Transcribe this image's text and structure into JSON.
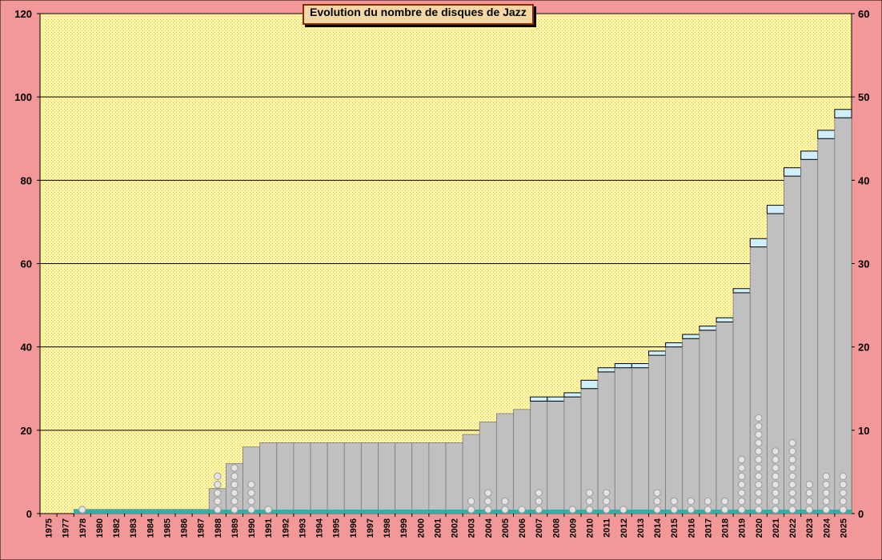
{
  "chart_data": {
    "type": "bar",
    "title": "Evolution du nombre de disques de Jazz",
    "categories": [
      "1975",
      "1977",
      "1978",
      "1980",
      "1982",
      "1983",
      "1984",
      "1985",
      "1986",
      "1987",
      "1988",
      "1989",
      "1990",
      "1991",
      "1992",
      "1993",
      "1994",
      "1995",
      "1996",
      "1997",
      "1998",
      "1999",
      "2000",
      "2001",
      "2002",
      "2003",
      "2004",
      "2005",
      "2006",
      "2007",
      "2008",
      "2009",
      "2010",
      "2011",
      "2012",
      "2013",
      "2014",
      "2015",
      "2016",
      "2017",
      "2018",
      "2019",
      "2020",
      "2021",
      "2022",
      "2023",
      "2024",
      "2025"
    ],
    "series": [
      {
        "values": [
          0,
          0,
          1,
          1,
          1,
          1,
          1,
          1,
          1,
          1,
          6,
          12,
          16,
          17,
          17,
          17,
          17,
          17,
          17,
          17,
          17,
          17,
          17,
          17,
          17,
          19,
          22,
          24,
          25,
          27,
          27,
          28,
          30,
          34,
          35,
          35,
          38,
          40,
          42,
          44,
          46,
          53,
          64,
          72,
          81,
          85,
          90,
          95
        ]
      },
      {
        "values": [
          0,
          0,
          0,
          0,
          0,
          0,
          0,
          0,
          0,
          0,
          0,
          0,
          0,
          0,
          0,
          0,
          0,
          0,
          0,
          0,
          0,
          0,
          0,
          0,
          0,
          0,
          0,
          0,
          0,
          1,
          1,
          1,
          2,
          1,
          1,
          1,
          1,
          1,
          1,
          1,
          1,
          1,
          2,
          2,
          2,
          2,
          2,
          2
        ]
      },
      {
        "values": [
          0,
          0,
          1,
          0,
          0,
          0,
          0,
          0,
          0,
          0,
          5,
          6,
          4,
          1,
          0,
          0,
          0,
          0,
          0,
          0,
          0,
          0,
          0,
          0,
          0,
          2,
          3,
          2,
          1,
          3,
          0,
          1,
          3,
          3,
          1,
          0,
          3,
          2,
          2,
          2,
          2,
          7,
          12,
          8,
          9,
          4,
          5,
          5
        ]
      }
    ],
    "ylim": [
      0,
      120
    ],
    "ylim_right": [
      0,
      60
    ],
    "yticks": [
      0,
      20,
      40,
      60,
      80,
      100,
      120
    ],
    "yticks_right": [
      0,
      10,
      20,
      30,
      40,
      50,
      60
    ],
    "grid": true,
    "colors": {
      "outer_bg": "#f39898",
      "plot_bg": "#fff7a8",
      "plot_dots": "#f2c060",
      "bar_fill": "#c0c0c0",
      "bar_cap": "#cfeffc",
      "baseline": "#30b0a8",
      "marker": "#e4e4e4",
      "title_bg": "#f5d7a5",
      "title_border": "#8b2a00"
    }
  }
}
